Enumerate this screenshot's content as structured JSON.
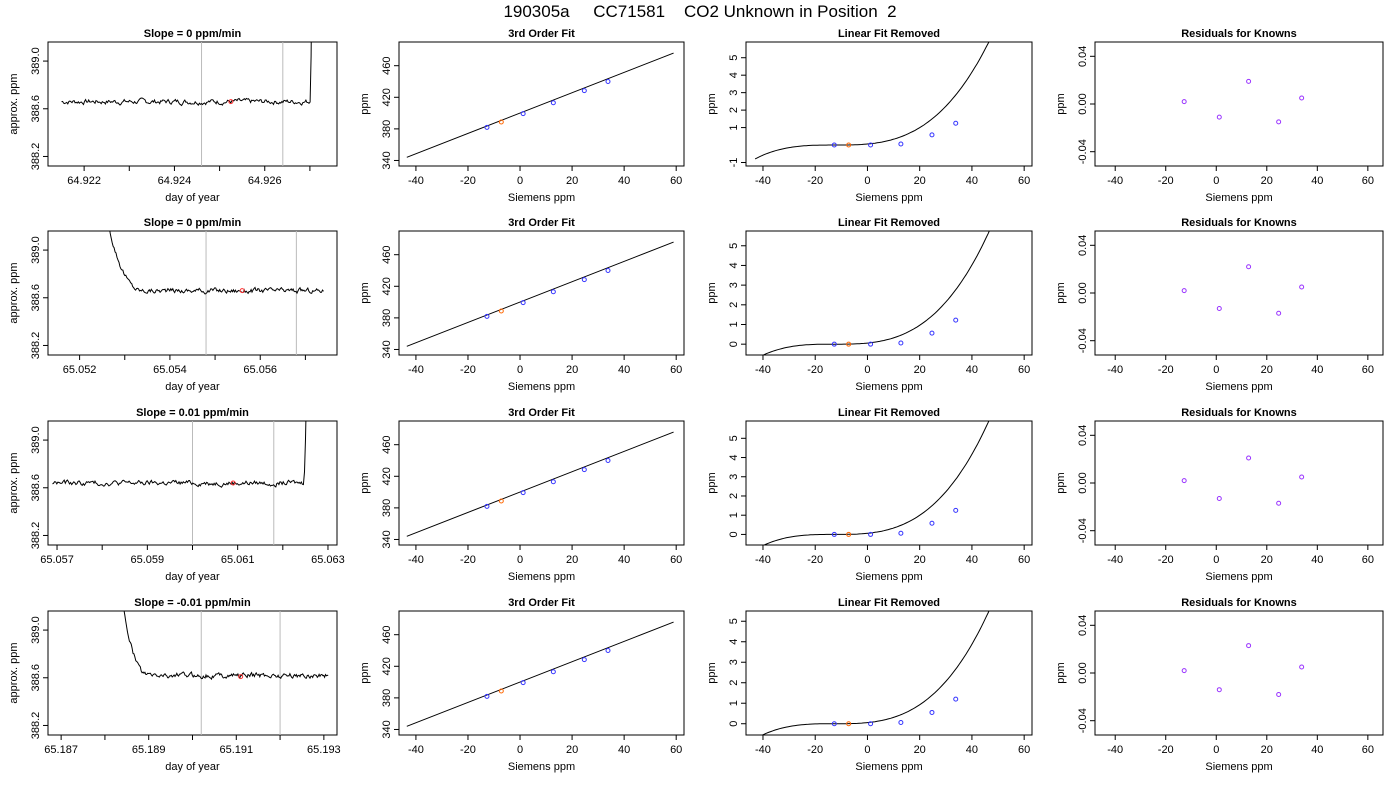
{
  "header": {
    "title": "190305a     CC71581    CO2 Unknown in Position  2"
  },
  "chart_data": [
    {
      "type": "line",
      "title": "Slope =  0  ppm/min",
      "xlabel": "day of year",
      "ylabel": "approx. ppm",
      "xlim": [
        64.9212,
        64.9276
      ],
      "ylim": [
        388.12,
        389.16
      ],
      "xticks": [
        64.922,
        64.923,
        64.924,
        64.925,
        64.926,
        64.927
      ],
      "xticklabels": [
        "64.922",
        "",
        "64.924",
        "",
        "64.926",
        ""
      ],
      "yticks": [
        388.2,
        388.6,
        389.0
      ],
      "yticklabels": [
        "388.2",
        "388.6",
        "389.0"
      ],
      "vlines": [
        64.9246,
        64.9264
      ],
      "trace": {
        "start": 64.9215,
        "end": 64.92705,
        "level": 388.66,
        "jump_start": 64.927,
        "ends_high": true,
        "starts_high": false
      },
      "marker": {
        "x": 64.92525,
        "y": 388.66
      }
    },
    {
      "type": "scatter",
      "title": "3rd Order Fit",
      "xlabel": "Siemens ppm",
      "ylabel": "ppm",
      "xlim": [
        -46.5,
        63
      ],
      "ylim": [
        333,
        490
      ],
      "xticks": [
        -40,
        -20,
        0,
        20,
        40,
        60
      ],
      "yticks": [
        340,
        380,
        420,
        460
      ],
      "line": [
        [
          -43.5,
          344
        ],
        [
          59,
          476
        ]
      ],
      "knowns": [
        [
          -12.7,
          381.9
        ],
        [
          1.2,
          399.3
        ],
        [
          12.8,
          413.1
        ],
        [
          24.7,
          428.4
        ],
        [
          33.8,
          440.0
        ]
      ],
      "unknown": [
        -7.2,
        388.7
      ]
    },
    {
      "type": "scatter",
      "title": "Linear Fit Removed",
      "xlabel": "Siemens ppm",
      "ylabel": "ppm",
      "xlim": [
        -46.5,
        63
      ],
      "ylim": [
        -1.2,
        5.9
      ],
      "xticks": [
        -40,
        -20,
        0,
        20,
        40,
        60
      ],
      "yticks": [
        -1,
        1,
        2,
        3,
        4,
        5
      ],
      "curve": {
        "k": 2.85e-05,
        "x0": -12.7,
        "x_start": -43,
        "x_end": 59
      },
      "knowns": [
        [
          -12.7,
          0.0
        ],
        [
          1.2,
          0.0
        ],
        [
          12.8,
          0.06
        ],
        [
          24.7,
          0.58
        ],
        [
          33.8,
          1.25
        ]
      ],
      "unknown": [
        -7.2,
        0.0
      ]
    },
    {
      "type": "scatter",
      "title": "Residuals for Knowns",
      "xlabel": "Siemens ppm",
      "ylabel": "ppm",
      "xlim": [
        -48,
        66
      ],
      "ylim": [
        -0.052,
        0.052
      ],
      "xticks": [
        -40,
        -20,
        0,
        20,
        40,
        60
      ],
      "yticks": [
        -0.04,
        0.0,
        0.04
      ],
      "yticklabels": [
        "-0.04",
        "0.00",
        "0.04"
      ],
      "points": [
        [
          -12.7,
          0.002
        ],
        [
          1.2,
          -0.011
        ],
        [
          12.8,
          0.019
        ],
        [
          24.7,
          -0.015
        ],
        [
          33.8,
          0.005
        ]
      ]
    },
    {
      "type": "line",
      "title": "Slope =  0  ppm/min",
      "xlabel": "day of year",
      "ylabel": "approx. ppm",
      "xlim": [
        65.0513,
        65.0577
      ],
      "ylim": [
        388.12,
        389.16
      ],
      "xticks": [
        65.052,
        65.053,
        65.054,
        65.055,
        65.056,
        65.057
      ],
      "xticklabels": [
        "65.052",
        "",
        "65.054",
        "",
        "65.056",
        ""
      ],
      "yticks": [
        388.2,
        388.6,
        389.0
      ],
      "yticklabels": [
        "388.2",
        "388.6",
        "389.0"
      ],
      "vlines": [
        65.0548,
        65.0568
      ],
      "trace": {
        "start": 65.0522,
        "end": 65.0574,
        "level": 388.66,
        "decay_end": 65.0534,
        "ends_high": false,
        "starts_high": true
      },
      "marker": {
        "x": 65.0556,
        "y": 388.66
      }
    },
    {
      "type": "scatter",
      "title": "3rd Order Fit",
      "xlabel": "Siemens ppm",
      "ylabel": "ppm",
      "xlim": [
        -46.5,
        63
      ],
      "ylim": [
        333,
        490
      ],
      "xticks": [
        -40,
        -20,
        0,
        20,
        40,
        60
      ],
      "yticks": [
        340,
        380,
        420,
        460
      ],
      "line": [
        [
          -43.5,
          344
        ],
        [
          59,
          476
        ]
      ],
      "knowns": [
        [
          -12.7,
          381.9
        ],
        [
          1.2,
          399.3
        ],
        [
          12.8,
          413.1
        ],
        [
          24.7,
          428.4
        ],
        [
          33.8,
          440.0
        ]
      ],
      "unknown": [
        -7.2,
        388.7
      ]
    },
    {
      "type": "scatter",
      "title": "Linear Fit Removed",
      "xlabel": "Siemens ppm",
      "ylabel": "ppm",
      "xlim": [
        -46.5,
        63
      ],
      "ylim": [
        -0.55,
        5.75
      ],
      "xticks": [
        -40,
        -20,
        0,
        20,
        40,
        60
      ],
      "yticks": [
        0,
        1,
        2,
        3,
        4,
        5
      ],
      "curve": {
        "k": 2.75e-05,
        "x0": -12.7,
        "x_start": -43,
        "x_end": 59
      },
      "knowns": [
        [
          -12.7,
          0.0
        ],
        [
          1.2,
          0.0
        ],
        [
          12.8,
          0.06
        ],
        [
          24.7,
          0.56
        ],
        [
          33.8,
          1.22
        ]
      ],
      "unknown": [
        -7.2,
        0.0
      ]
    },
    {
      "type": "scatter",
      "title": "Residuals for Knowns",
      "xlabel": "Siemens ppm",
      "ylabel": "ppm",
      "xlim": [
        -48,
        66
      ],
      "ylim": [
        -0.052,
        0.052
      ],
      "xticks": [
        -40,
        -20,
        0,
        20,
        40,
        60
      ],
      "yticks": [
        -0.04,
        0.0,
        0.04
      ],
      "yticklabels": [
        "-0.04",
        "0.00",
        "0.04"
      ],
      "points": [
        [
          -12.7,
          0.002
        ],
        [
          1.2,
          -0.013
        ],
        [
          12.8,
          0.022
        ],
        [
          24.7,
          -0.017
        ],
        [
          33.8,
          0.005
        ]
      ]
    },
    {
      "type": "line",
      "title": "Slope =  0.01  ppm/min",
      "xlabel": "day of year",
      "ylabel": "approx. ppm",
      "xlim": [
        65.0568,
        65.0632
      ],
      "ylim": [
        388.12,
        389.16
      ],
      "xticks": [
        65.057,
        65.058,
        65.059,
        65.06,
        65.061,
        65.062,
        65.063
      ],
      "xticklabels": [
        "65.057",
        "",
        "65.059",
        "",
        "65.061",
        "",
        "65.063"
      ],
      "yticks": [
        388.2,
        388.6,
        389.0
      ],
      "yticklabels": [
        "388.2",
        "388.6",
        "389.0"
      ],
      "vlines": [
        65.06,
        65.0618
      ],
      "trace": {
        "start": 65.0569,
        "end": 65.06255,
        "level": 388.64,
        "jump_start": 65.06245,
        "ends_high": true,
        "starts_high": false
      },
      "marker": {
        "x": 65.0609,
        "y": 388.64
      }
    },
    {
      "type": "scatter",
      "title": "3rd Order Fit",
      "xlabel": "Siemens ppm",
      "ylabel": "ppm",
      "xlim": [
        -46.5,
        63
      ],
      "ylim": [
        333,
        490
      ],
      "xticks": [
        -40,
        -20,
        0,
        20,
        40,
        60
      ],
      "yticks": [
        340,
        380,
        420,
        460
      ],
      "line": [
        [
          -43.5,
          344
        ],
        [
          59,
          476
        ]
      ],
      "knowns": [
        [
          -12.7,
          381.9
        ],
        [
          1.2,
          399.3
        ],
        [
          12.8,
          413.1
        ],
        [
          24.7,
          428.4
        ],
        [
          33.8,
          440.0
        ]
      ],
      "unknown": [
        -7.2,
        388.7
      ]
    },
    {
      "type": "scatter",
      "title": "Linear Fit Removed",
      "xlabel": "Siemens ppm",
      "ylabel": "ppm",
      "xlim": [
        -46.5,
        63
      ],
      "ylim": [
        -0.55,
        5.9
      ],
      "xticks": [
        -40,
        -20,
        0,
        20,
        40,
        60
      ],
      "yticks": [
        0,
        1,
        2,
        3,
        4,
        5
      ],
      "curve": {
        "k": 2.85e-05,
        "x0": -12.7,
        "x_start": -43,
        "x_end": 59
      },
      "knowns": [
        [
          -12.7,
          0.0
        ],
        [
          1.2,
          0.0
        ],
        [
          12.8,
          0.06
        ],
        [
          24.7,
          0.58
        ],
        [
          33.8,
          1.25
        ]
      ],
      "unknown": [
        -7.2,
        0.0
      ]
    },
    {
      "type": "scatter",
      "title": "Residuals for Knowns",
      "xlabel": "Siemens ppm",
      "ylabel": "ppm",
      "xlim": [
        -48,
        66
      ],
      "ylim": [
        -0.052,
        0.052
      ],
      "xticks": [
        -40,
        -20,
        0,
        20,
        40,
        60
      ],
      "yticks": [
        -0.04,
        0.0,
        0.04
      ],
      "yticklabels": [
        "-0.04",
        "0.00",
        "0.04"
      ],
      "points": [
        [
          -12.7,
          0.002
        ],
        [
          1.2,
          -0.013
        ],
        [
          12.8,
          0.021
        ],
        [
          24.7,
          -0.017
        ],
        [
          33.8,
          0.005
        ]
      ]
    },
    {
      "type": "line",
      "title": "Slope =  -0.01  ppm/min",
      "xlabel": "day of year",
      "ylabel": "approx. ppm",
      "xlim": [
        65.1867,
        65.1933
      ],
      "ylim": [
        388.12,
        389.16
      ],
      "xticks": [
        65.187,
        65.188,
        65.189,
        65.19,
        65.191,
        65.192,
        65.193
      ],
      "xticklabels": [
        "65.187",
        "",
        "65.189",
        "",
        "65.191",
        "",
        "65.193"
      ],
      "yticks": [
        388.2,
        388.6,
        389.0
      ],
      "yticklabels": [
        "388.2",
        "388.6",
        "389.0"
      ],
      "vlines": [
        65.1902,
        65.192
      ],
      "trace": {
        "start": 65.1881,
        "end": 65.1931,
        "level": 388.62,
        "decay_end": 65.189,
        "ends_high": false,
        "starts_high": true
      },
      "marker": {
        "x": 65.1911,
        "y": 388.61
      }
    },
    {
      "type": "scatter",
      "title": "3rd Order Fit",
      "xlabel": "Siemens ppm",
      "ylabel": "ppm",
      "xlim": [
        -46.5,
        63
      ],
      "ylim": [
        333,
        490
      ],
      "xticks": [
        -40,
        -20,
        0,
        20,
        40,
        60
      ],
      "yticks": [
        340,
        380,
        420,
        460
      ],
      "line": [
        [
          -43.5,
          344
        ],
        [
          59,
          476
        ]
      ],
      "knowns": [
        [
          -12.7,
          381.9
        ],
        [
          1.2,
          399.3
        ],
        [
          12.8,
          413.1
        ],
        [
          24.7,
          428.4
        ],
        [
          33.8,
          440.0
        ]
      ],
      "unknown": [
        -7.2,
        388.7
      ]
    },
    {
      "type": "scatter",
      "title": "Linear Fit Removed",
      "xlabel": "Siemens ppm",
      "ylabel": "ppm",
      "xlim": [
        -46.5,
        63
      ],
      "ylim": [
        -0.55,
        5.5
      ],
      "xticks": [
        -40,
        -20,
        0,
        20,
        40,
        60
      ],
      "yticks": [
        0,
        1,
        2,
        3,
        4,
        5
      ],
      "curve": {
        "k": 2.65e-05,
        "x0": -12.7,
        "x_start": -43,
        "x_end": 59
      },
      "knowns": [
        [
          -12.7,
          0.0
        ],
        [
          1.2,
          0.0
        ],
        [
          12.8,
          0.06
        ],
        [
          24.7,
          0.55
        ],
        [
          33.8,
          1.2
        ]
      ],
      "unknown": [
        -7.2,
        0.0
      ]
    },
    {
      "type": "scatter",
      "title": "Residuals for Knowns",
      "xlabel": "Siemens ppm",
      "ylabel": "ppm",
      "xlim": [
        -48,
        66
      ],
      "ylim": [
        -0.052,
        0.052
      ],
      "xticks": [
        -40,
        -20,
        0,
        20,
        40,
        60
      ],
      "yticks": [
        -0.04,
        0.0,
        0.04
      ],
      "yticklabels": [
        "-0.04",
        "0.00",
        "0.04"
      ],
      "points": [
        [
          -12.7,
          0.002
        ],
        [
          1.2,
          -0.014
        ],
        [
          12.8,
          0.023
        ],
        [
          24.7,
          -0.018
        ],
        [
          33.8,
          0.005
        ]
      ]
    }
  ],
  "colors": {
    "known": "#3333ff",
    "unknown": "#ff6600",
    "residual": "#9933ff",
    "trace_marker": "#ff3333",
    "vline": "#bbbbbb"
  }
}
